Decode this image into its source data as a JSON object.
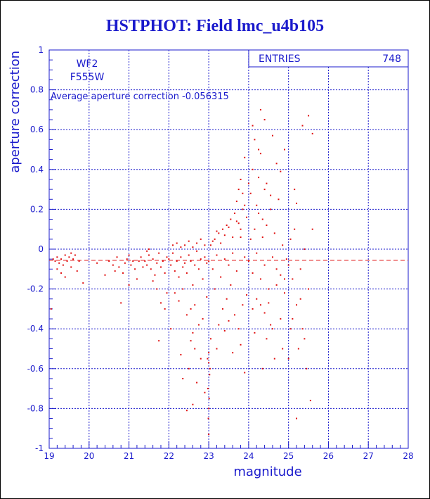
{
  "chart_data": {
    "type": "scatter",
    "title": "HSTPHOT: Field lmc_u4b105",
    "xlabel": "magnitude",
    "ylabel": "aperture correction",
    "xlim": [
      19,
      28
    ],
    "ylim": [
      -1,
      1
    ],
    "x_ticks": [
      "19",
      "20",
      "21",
      "22",
      "23",
      "24",
      "25",
      "26",
      "27",
      "28"
    ],
    "y_ticks": [
      "-1",
      "-0.8",
      "-0.6",
      "-0.4",
      "-0.2",
      "0",
      "0.2",
      "0.4",
      "0.6",
      "0.8",
      "1"
    ],
    "grid": true,
    "stats_box": {
      "label": "ENTRIES",
      "value": "748"
    },
    "annotations": {
      "chip": "WF2",
      "filter": "F555W",
      "average": "Average aperture correction -0.056315"
    },
    "reference_line": {
      "y": -0.056315,
      "style": "dashed",
      "color": "#e01010"
    },
    "point_color": "#e01010",
    "series": [
      {
        "points": [
          [
            19.1,
            -0.05
          ],
          [
            19.15,
            -0.06
          ],
          [
            19.2,
            -0.04
          ],
          [
            19.25,
            -0.07
          ],
          [
            19.3,
            -0.05
          ],
          [
            19.35,
            -0.08
          ],
          [
            19.4,
            -0.03
          ],
          [
            19.45,
            -0.06
          ],
          [
            19.5,
            -0.04
          ],
          [
            19.55,
            -0.09
          ],
          [
            19.6,
            -0.05
          ],
          [
            19.65,
            -0.03
          ],
          [
            19.7,
            -0.11
          ],
          [
            19.75,
            -0.06
          ],
          [
            19.3,
            -0.12
          ],
          [
            19.2,
            -0.1
          ],
          [
            19.85,
            -0.17
          ],
          [
            19.05,
            -0.3
          ],
          [
            19.4,
            -0.14
          ],
          [
            19.55,
            -0.02
          ],
          [
            20.2,
            -0.07
          ],
          [
            20.4,
            -0.13
          ],
          [
            20.5,
            -0.06
          ],
          [
            20.6,
            -0.08
          ],
          [
            20.7,
            -0.04
          ],
          [
            20.75,
            -0.09
          ],
          [
            20.85,
            -0.12
          ],
          [
            20.9,
            -0.07
          ],
          [
            20.95,
            -0.05
          ],
          [
            21.0,
            -0.03
          ],
          [
            21.05,
            -0.08
          ],
          [
            21.1,
            -0.06
          ],
          [
            20.8,
            -0.27
          ],
          [
            21.15,
            -0.1
          ],
          [
            21.2,
            -0.15
          ],
          [
            21.25,
            -0.06
          ],
          [
            21.3,
            -0.04
          ],
          [
            21.35,
            -0.09
          ],
          [
            21.0,
            -0.18
          ],
          [
            20.65,
            -0.11
          ],
          [
            21.4,
            -0.06
          ],
          [
            21.45,
            -0.08
          ],
          [
            21.5,
            -0.03
          ],
          [
            21.55,
            -0.1
          ],
          [
            21.6,
            -0.05
          ],
          [
            21.65,
            -0.13
          ],
          [
            21.7,
            -0.07
          ],
          [
            21.75,
            -0.02
          ],
          [
            21.8,
            -0.09
          ],
          [
            21.85,
            -0.06
          ],
          [
            21.9,
            -0.12
          ],
          [
            21.95,
            -0.04
          ],
          [
            21.7,
            -0.2
          ],
          [
            21.8,
            -0.27
          ],
          [
            21.75,
            -0.46
          ],
          [
            21.9,
            -0.3
          ],
          [
            21.5,
            0.0
          ],
          [
            21.6,
            -0.16
          ],
          [
            21.45,
            -0.01
          ],
          [
            21.95,
            -0.22
          ],
          [
            22.0,
            -0.05
          ],
          [
            22.05,
            -0.08
          ],
          [
            22.1,
            -0.02
          ],
          [
            22.15,
            -0.11
          ],
          [
            22.2,
            -0.06
          ],
          [
            22.25,
            -0.14
          ],
          [
            22.3,
            -0.04
          ],
          [
            22.35,
            -0.09
          ],
          [
            22.4,
            -0.07
          ],
          [
            22.45,
            -0.12
          ],
          [
            22.5,
            -0.03
          ],
          [
            22.55,
            -0.06
          ],
          [
            22.6,
            -0.18
          ],
          [
            22.65,
            -0.08
          ],
          [
            22.7,
            -0.01
          ],
          [
            22.75,
            -0.1
          ],
          [
            22.8,
            -0.05
          ],
          [
            22.85,
            -0.15
          ],
          [
            22.9,
            -0.04
          ],
          [
            22.95,
            -0.07
          ],
          [
            22.1,
            0.02
          ],
          [
            22.2,
            0.03
          ],
          [
            22.3,
            0.01
          ],
          [
            22.4,
            0.02
          ],
          [
            22.5,
            0.04
          ],
          [
            22.6,
            0.01
          ],
          [
            22.7,
            0.03
          ],
          [
            22.8,
            0.05
          ],
          [
            22.9,
            0.02
          ],
          [
            22.15,
            -0.22
          ],
          [
            22.35,
            -0.2
          ],
          [
            22.55,
            -0.3
          ],
          [
            22.25,
            -0.26
          ],
          [
            22.45,
            -0.33
          ],
          [
            22.65,
            -0.28
          ],
          [
            22.85,
            -0.35
          ],
          [
            22.05,
            -0.4
          ],
          [
            22.6,
            -0.42
          ],
          [
            22.75,
            -0.38
          ],
          [
            22.95,
            -0.24
          ],
          [
            22.3,
            -0.53
          ],
          [
            22.5,
            -0.6
          ],
          [
            22.6,
            -0.78
          ],
          [
            22.7,
            -0.67
          ],
          [
            22.45,
            -0.81
          ],
          [
            22.8,
            -0.55
          ],
          [
            22.9,
            -0.72
          ],
          [
            22.65,
            -0.5
          ],
          [
            22.55,
            -0.46
          ],
          [
            22.35,
            -0.65
          ],
          [
            23.0,
            -0.06
          ],
          [
            23.05,
            0.02
          ],
          [
            23.1,
            -0.1
          ],
          [
            23.15,
            0.05
          ],
          [
            23.2,
            -0.03
          ],
          [
            23.25,
            0.08
          ],
          [
            23.3,
            -0.14
          ],
          [
            23.35,
            0.1
          ],
          [
            23.4,
            -0.05
          ],
          [
            23.45,
            0.12
          ],
          [
            23.5,
            -0.08
          ],
          [
            23.55,
            0.15
          ],
          [
            23.6,
            -0.02
          ],
          [
            23.65,
            0.18
          ],
          [
            23.7,
            -0.11
          ],
          [
            23.75,
            0.13
          ],
          [
            23.8,
            0.06
          ],
          [
            23.85,
            0.2
          ],
          [
            23.9,
            -0.04
          ],
          [
            23.95,
            0.16
          ],
          [
            23.1,
            0.04
          ],
          [
            23.2,
            0.09
          ],
          [
            23.3,
            0.03
          ],
          [
            23.4,
            0.07
          ],
          [
            23.5,
            0.11
          ],
          [
            23.6,
            0.06
          ],
          [
            23.7,
            0.14
          ],
          [
            23.8,
            0.1
          ],
          [
            23.9,
            0.22
          ],
          [
            23.15,
            -0.2
          ],
          [
            23.35,
            -0.3
          ],
          [
            23.55,
            -0.18
          ],
          [
            23.25,
            -0.38
          ],
          [
            23.45,
            -0.25
          ],
          [
            23.65,
            -0.33
          ],
          [
            23.85,
            -0.28
          ],
          [
            23.05,
            -0.45
          ],
          [
            23.75,
            -0.4
          ],
          [
            23.95,
            -0.23
          ],
          [
            23.5,
            -0.36
          ],
          [
            23.0,
            -0.52
          ],
          [
            23.0,
            -0.57
          ],
          [
            23.02,
            -0.63
          ],
          [
            22.98,
            -0.7
          ],
          [
            23.0,
            -0.8
          ],
          [
            23.03,
            -0.6
          ],
          [
            22.97,
            -0.55
          ],
          [
            23.01,
            -0.75
          ],
          [
            23.0,
            -0.93
          ],
          [
            22.99,
            -0.85
          ],
          [
            23.8,
            -0.48
          ],
          [
            23.9,
            -0.62
          ],
          [
            23.6,
            -0.52
          ],
          [
            23.4,
            -0.41
          ],
          [
            23.2,
            -0.5
          ],
          [
            23.7,
            0.24
          ],
          [
            23.75,
            0.3
          ],
          [
            23.8,
            0.35
          ],
          [
            23.85,
            0.28
          ],
          [
            23.9,
            0.46
          ],
          [
            24.0,
            0.33
          ],
          [
            24.05,
            0.28
          ],
          [
            24.1,
            0.4
          ],
          [
            24.15,
            0.55
          ],
          [
            24.2,
            0.22
          ],
          [
            24.25,
            0.36
          ],
          [
            24.3,
            0.48
          ],
          [
            24.35,
            0.15
          ],
          [
            24.4,
            0.3
          ],
          [
            24.0,
            -0.06
          ],
          [
            24.05,
            0.05
          ],
          [
            24.1,
            -0.12
          ],
          [
            24.15,
            0.1
          ],
          [
            24.2,
            -0.02
          ],
          [
            24.25,
            0.18
          ],
          [
            24.3,
            -0.15
          ],
          [
            24.35,
            0.06
          ],
          [
            24.4,
            -0.08
          ],
          [
            24.45,
            0.12
          ],
          [
            24.5,
            -0.2
          ],
          [
            24.55,
            0.2
          ],
          [
            24.6,
            -0.04
          ],
          [
            24.65,
            0.08
          ],
          [
            24.7,
            -0.1
          ],
          [
            24.75,
            0.25
          ],
          [
            24.8,
            -0.13
          ],
          [
            24.85,
            0.02
          ],
          [
            24.9,
            -0.22
          ],
          [
            24.95,
            -0.05
          ],
          [
            24.1,
            -0.3
          ],
          [
            24.2,
            -0.25
          ],
          [
            24.3,
            -0.28
          ],
          [
            24.4,
            -0.32
          ],
          [
            24.5,
            -0.27
          ],
          [
            24.6,
            -0.4
          ],
          [
            24.7,
            -0.18
          ],
          [
            24.8,
            -0.35
          ],
          [
            24.9,
            -0.15
          ],
          [
            24.15,
            -0.42
          ],
          [
            24.45,
            -0.45
          ],
          [
            24.65,
            -0.55
          ],
          [
            24.85,
            -0.5
          ],
          [
            24.35,
            -0.6
          ],
          [
            24.55,
            -0.38
          ],
          [
            24.1,
            0.62
          ],
          [
            24.25,
            0.5
          ],
          [
            24.3,
            0.7
          ],
          [
            24.4,
            0.65
          ],
          [
            24.6,
            0.57
          ],
          [
            24.7,
            0.43
          ],
          [
            24.8,
            0.39
          ],
          [
            24.9,
            0.5
          ],
          [
            24.45,
            0.33
          ],
          [
            24.55,
            0.27
          ],
          [
            25.0,
            -0.08
          ],
          [
            25.05,
            0.05
          ],
          [
            25.1,
            -0.15
          ],
          [
            25.15,
            0.1
          ],
          [
            25.2,
            -0.28
          ],
          [
            25.3,
            -0.1
          ],
          [
            25.35,
            -0.4
          ],
          [
            25.4,
            0.0
          ],
          [
            25.5,
            -0.2
          ],
          [
            25.6,
            0.1
          ],
          [
            25.0,
            -0.55
          ],
          [
            25.2,
            -0.85
          ],
          [
            25.25,
            -0.5
          ],
          [
            25.45,
            -0.6
          ],
          [
            25.55,
            -0.76
          ],
          [
            25.35,
            0.62
          ],
          [
            25.5,
            0.67
          ],
          [
            25.6,
            0.58
          ],
          [
            25.1,
            -0.35
          ],
          [
            25.3,
            -0.25
          ],
          [
            25.15,
            0.3
          ],
          [
            25.2,
            0.23
          ],
          [
            25.4,
            -0.45
          ],
          [
            25.05,
            -0.4
          ]
        ]
      }
    ]
  }
}
